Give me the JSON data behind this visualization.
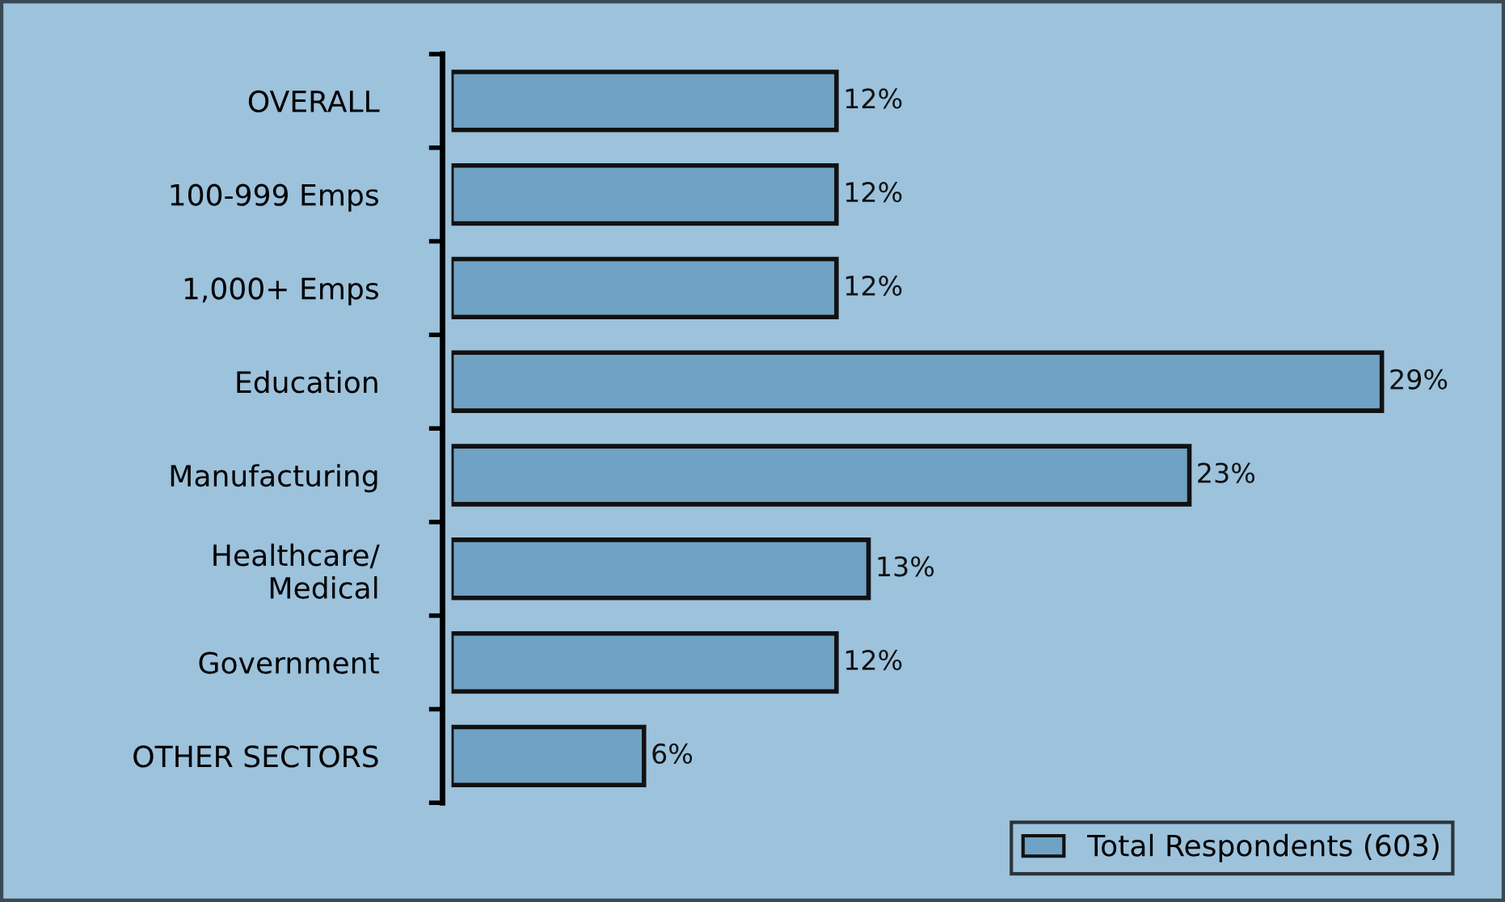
{
  "chart_data": {
    "type": "bar",
    "orientation": "horizontal",
    "categories": [
      "OVERALL",
      "100-999 Emps",
      "1,000+ Emps",
      "Education",
      "Manufacturing",
      "Healthcare/\nMedical",
      "Government",
      "OTHER SECTORS"
    ],
    "series": [
      {
        "name": "Total Respondents (603)",
        "color": "#6fa2c4",
        "values": [
          12,
          12,
          12,
          29,
          23,
          13,
          12,
          6
        ],
        "value_labels": [
          "12%",
          "12%",
          "12%",
          "29%",
          "23%",
          "13%",
          "12%",
          "6%"
        ]
      }
    ],
    "legend": "bottom right",
    "grid": false
  }
}
